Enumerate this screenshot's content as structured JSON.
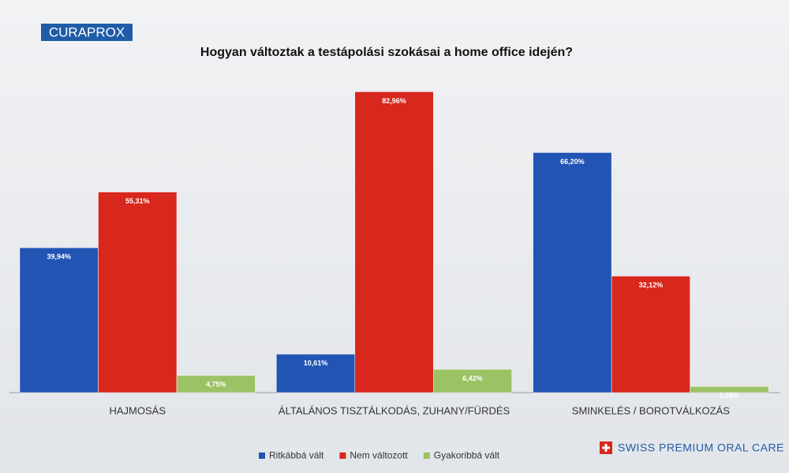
{
  "brand": "CURAPROX",
  "tagline": "SWISS PREMIUM ORAL CARE",
  "chart_data": {
    "type": "bar",
    "title": "Hogyan változtak a testápolási szokásai a home office idején?",
    "categories": [
      "HAJMOSÁS",
      "ÁLTALÁNOS TISZTÁLKODÁS, ZUHANY/FÜRDÉS",
      "SMINKELÉS / BOROTVÁLKOZÁS"
    ],
    "series": [
      {
        "name": "Ritkábbá vált",
        "color": "#2254b4",
        "values": [
          39.94,
          10.61,
          66.2
        ],
        "value_labels": [
          "39,94%",
          "10,61%",
          "66,20%"
        ]
      },
      {
        "name": "Nem változott",
        "color": "#d8271d",
        "values": [
          55.31,
          82.96,
          32.12
        ],
        "value_labels": [
          "55,31%",
          "82,96%",
          "32,12%"
        ]
      },
      {
        "name": "Gyakoribbá vált",
        "color": "#9cc266",
        "values": [
          4.75,
          6.42,
          1.68
        ],
        "value_labels": [
          "4,75%",
          "6,42%",
          "1,68%"
        ]
      }
    ]
  }
}
